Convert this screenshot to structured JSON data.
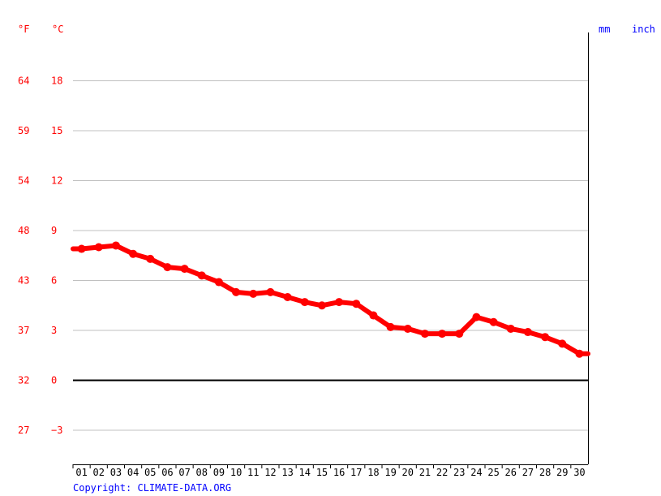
{
  "chart_data": {
    "type": "line",
    "units_left": {
      "f": "°F",
      "c": "°C"
    },
    "units_right": {
      "mm": "mm",
      "inch": "inch"
    },
    "ylim_c": [
      -5,
      21
    ],
    "y_ticks": [
      {
        "c": "18",
        "f": "64"
      },
      {
        "c": "15",
        "f": "59"
      },
      {
        "c": "12",
        "f": "54"
      },
      {
        "c": "9",
        "f": "48"
      },
      {
        "c": "6",
        "f": "43"
      },
      {
        "c": "3",
        "f": "37"
      },
      {
        "c": "0",
        "f": "32"
      },
      {
        "c": "−3",
        "f": "27"
      }
    ],
    "categories": [
      "01",
      "02",
      "03",
      "04",
      "05",
      "06",
      "07",
      "08",
      "09",
      "10",
      "11",
      "12",
      "13",
      "14",
      "15",
      "16",
      "17",
      "18",
      "19",
      "20",
      "21",
      "22",
      "23",
      "24",
      "25",
      "26",
      "27",
      "28",
      "29",
      "30"
    ],
    "series": [
      {
        "color": "#ff0000",
        "values": [
          7.9,
          8.0,
          8.1,
          7.6,
          7.3,
          6.8,
          6.7,
          6.3,
          5.9,
          5.3,
          5.2,
          5.3,
          5.0,
          4.7,
          4.5,
          4.7,
          4.6,
          3.9,
          3.2,
          3.1,
          2.8,
          2.8,
          2.8,
          3.8,
          3.5,
          3.1,
          2.9,
          2.6,
          2.2,
          1.6
        ]
      }
    ],
    "extra_end_value": 1.6,
    "start_value": 7.9,
    "grid": true,
    "copyright": "Copyright: CLIMATE-DATA.ORG",
    "colors": {
      "line": "#ff0000",
      "axis_left": "#ff0000",
      "axis_right": "#0000ff",
      "copyright": "#0000ff",
      "grid": "#c0c0c0"
    }
  }
}
